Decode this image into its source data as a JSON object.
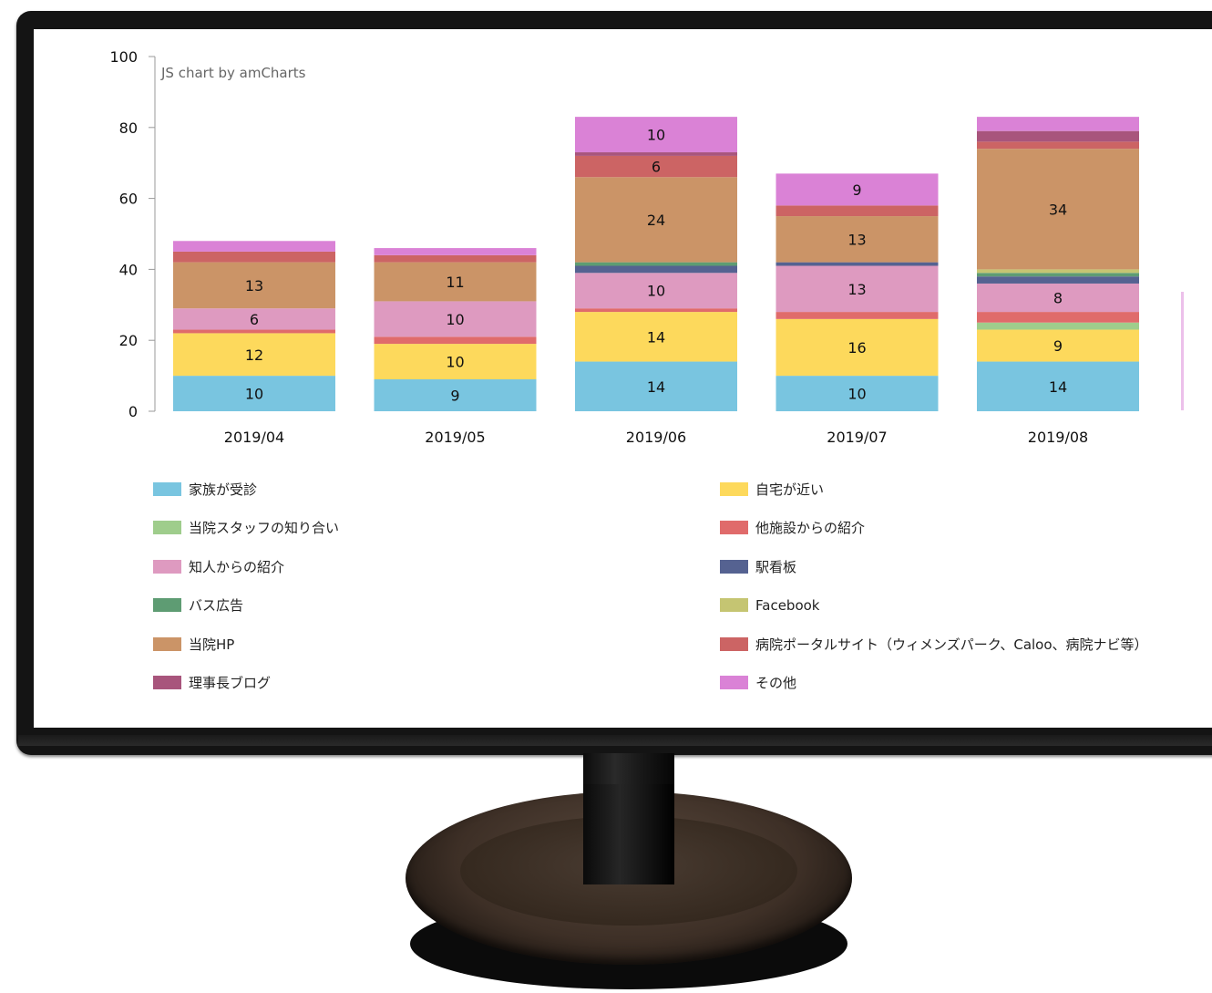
{
  "credit": "JS chart by amCharts",
  "chart_data": {
    "type": "bar",
    "stacked": true,
    "categories": [
      "2019/04",
      "2019/05",
      "2019/06",
      "2019/07",
      "2019/08"
    ],
    "ylim": [
      0,
      100
    ],
    "yticks": [
      0,
      20,
      40,
      60,
      80,
      100
    ],
    "grid": false,
    "legend_position": "bottom",
    "series": [
      {
        "name": "家族が受診",
        "color": "#79c5e0",
        "values": [
          10,
          9,
          14,
          10,
          14
        ]
      },
      {
        "name": "自宅が近い",
        "color": "#fdd95c",
        "values": [
          12,
          10,
          14,
          16,
          9
        ]
      },
      {
        "name": "当院スタッフの知り合い",
        "color": "#9fcd8c",
        "values": [
          0,
          0,
          0,
          0,
          2
        ]
      },
      {
        "name": "他施設からの紹介",
        "color": "#e06b6b",
        "values": [
          1,
          2,
          1,
          2,
          3
        ]
      },
      {
        "name": "知人からの紹介",
        "color": "#de9ac0",
        "values": [
          6,
          10,
          10,
          13,
          8
        ]
      },
      {
        "name": "駅看板",
        "color": "#556291",
        "values": [
          0,
          0,
          2,
          1,
          2
        ]
      },
      {
        "name": "バス広告",
        "color": "#5e9c73",
        "values": [
          0,
          0,
          1,
          0,
          1
        ]
      },
      {
        "name": "Facebook",
        "color": "#c5c572",
        "values": [
          0,
          0,
          0,
          0,
          1
        ]
      },
      {
        "name": "当院HP",
        "color": "#cb9467",
        "values": [
          13,
          11,
          24,
          13,
          34
        ]
      },
      {
        "name": "病院ポータルサイト（ウィメンズパーク、Caloo、病院ナビ等）",
        "color": "#cc6464",
        "values": [
          3,
          2,
          6,
          3,
          2
        ]
      },
      {
        "name": "理事長ブログ",
        "color": "#a8557c",
        "values": [
          0,
          0,
          1,
          0,
          3
        ]
      },
      {
        "name": "その他",
        "color": "#da82d6",
        "values": [
          3,
          2,
          10,
          9,
          4
        ]
      }
    ]
  }
}
